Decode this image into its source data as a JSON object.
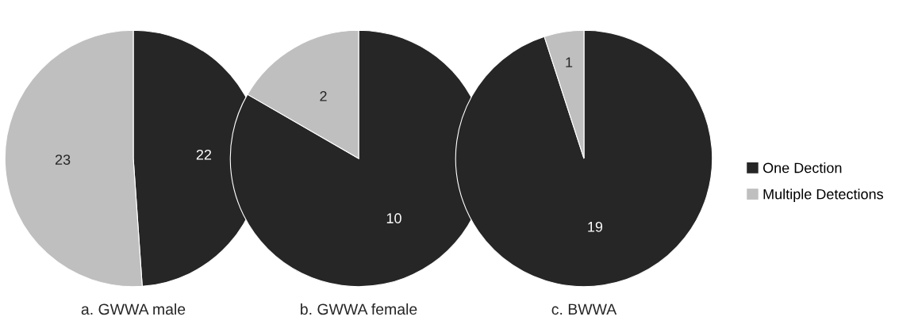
{
  "chart_data": [
    {
      "type": "pie",
      "title": "a. GWWA male",
      "categories": [
        null,
        null
      ],
      "values": [
        22,
        23
      ],
      "colors": [
        "#262626",
        "#bfbfbf"
      ],
      "data_labels": true
    },
    {
      "type": "pie",
      "title": "b. GWWA female",
      "categories": [
        null,
        null
      ],
      "values": [
        10,
        2
      ],
      "colors": [
        "#262626",
        "#bfbfbf"
      ],
      "data_labels": true
    },
    {
      "type": "pie",
      "title": "c. BWWA",
      "categories": [
        "One Dection",
        "Multiple Detections"
      ],
      "values": [
        19,
        1
      ],
      "colors": [
        "#262626",
        "#bfbfbf"
      ],
      "data_labels": true,
      "legend": "right"
    }
  ]
}
